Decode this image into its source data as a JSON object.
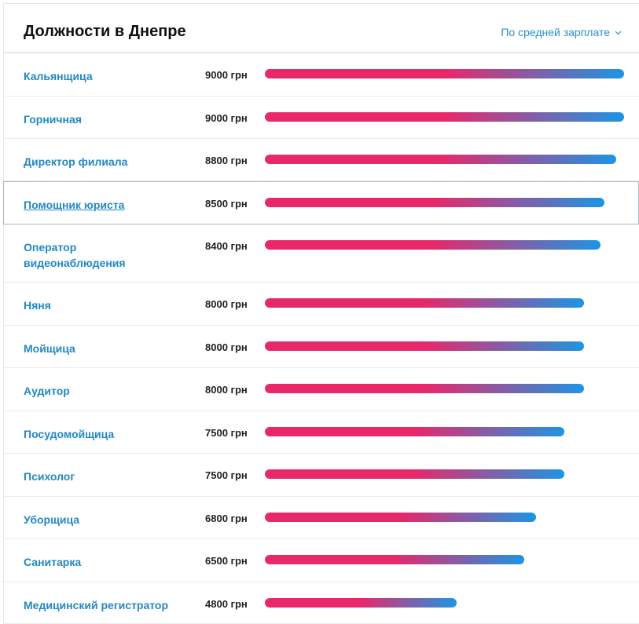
{
  "chart_data": {
    "type": "bar",
    "title": "Должности в Днепре",
    "sort_label": "По средней зарплате",
    "categories": [
      "Кальянщица",
      "Горничная",
      "Директор филиала",
      "Помощник юриста",
      "Оператор видеонаблюдения",
      "Няня",
      "Мойщица",
      "Аудитор",
      "Посудомойщица",
      "Психолог",
      "Уборщица",
      "Санитарка",
      "Медицинский регистратор"
    ],
    "values": [
      9000,
      9000,
      8800,
      8500,
      8400,
      8000,
      8000,
      8000,
      7500,
      7500,
      6800,
      6500,
      4800
    ],
    "value_labels": [
      "9000 грн",
      "9000 грн",
      "8800 грн",
      "8500 грн",
      "8400 грн",
      "8000 грн",
      "8000 грн",
      "8000 грн",
      "7500 грн",
      "7500 грн",
      "6800 грн",
      "6500 грн",
      "4800 грн"
    ],
    "gradient": [
      "#e8286b",
      "#1c95e4"
    ]
  }
}
